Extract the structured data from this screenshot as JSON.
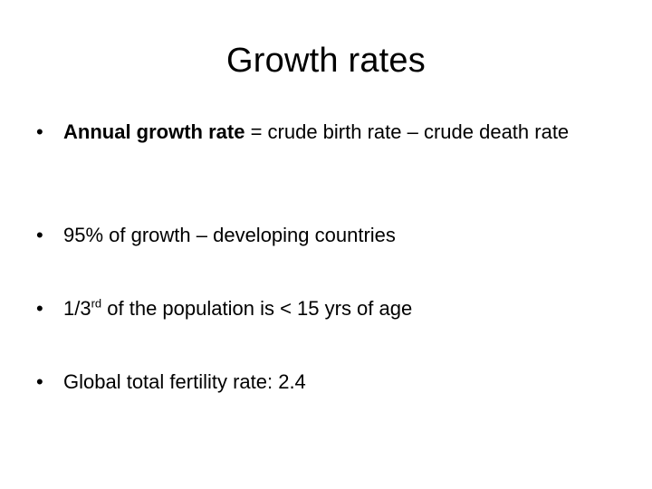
{
  "slide": {
    "title": "Growth rates",
    "bullet_symbol": "•",
    "bullets": [
      {
        "lead_bold": "Annual growth rate",
        "text": " = crude birth rate – crude death rate"
      },
      {
        "text": "95% of growth – developing countries"
      },
      {
        "pre": "1/3",
        "sup": "rd",
        "post": " of the population is < 15 yrs of age"
      },
      {
        "text": "Global total fertility rate: 2.4"
      }
    ]
  }
}
